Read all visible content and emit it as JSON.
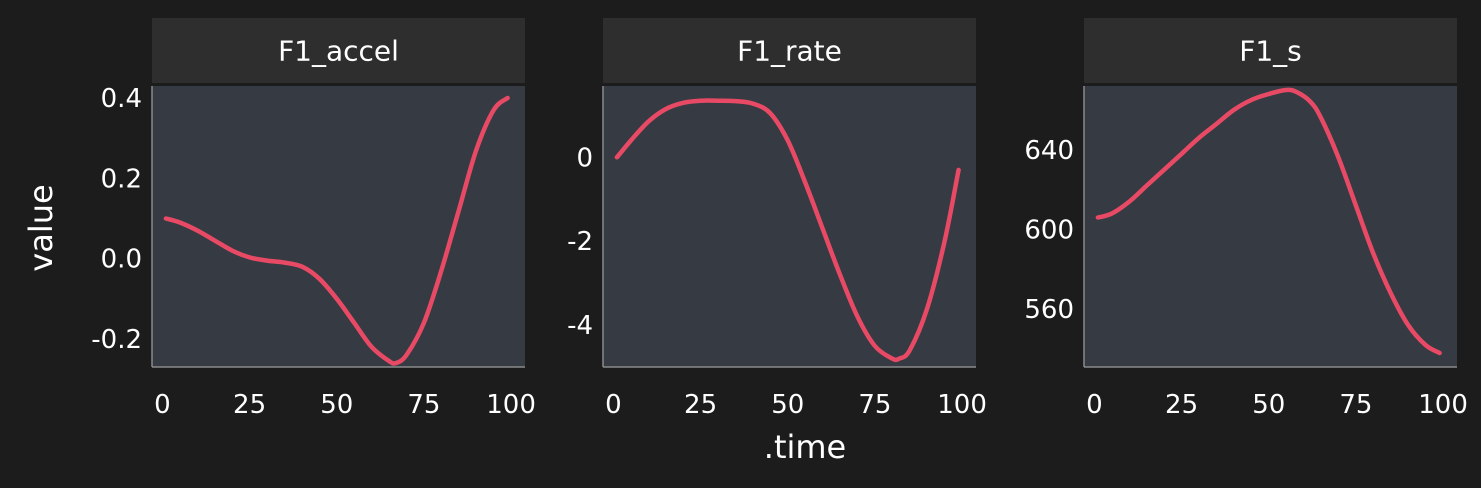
{
  "colors": {
    "background": "#1c1c1c",
    "panel": "#363a42",
    "strip": "#2e2e2e",
    "line": "#e84a66",
    "text": "#ffffff",
    "axis": "#8a8a8a"
  },
  "chart_data": {
    "type": "line",
    "facet_by": "variable",
    "xlabel": ".time",
    "ylabel": "value",
    "grid": false,
    "legend": "none",
    "panels": [
      {
        "strip": "F1_accel",
        "xlim": [
          -3,
          104
        ],
        "ylim": [
          -0.27,
          0.43
        ],
        "xticks": [
          0,
          25,
          50,
          75,
          100
        ],
        "yticks": [
          0.4,
          0.2,
          0.0,
          -0.2
        ],
        "ytick_labels": [
          "0.4",
          "0.2",
          "0.0",
          "-0.2"
        ],
        "x": [
          1,
          5,
          10,
          15,
          20,
          25,
          30,
          35,
          40,
          45,
          50,
          55,
          60,
          65,
          67,
          70,
          75,
          80,
          85,
          90,
          95,
          99
        ],
        "y": [
          0.1,
          0.09,
          0.07,
          0.045,
          0.02,
          0.003,
          -0.005,
          -0.01,
          -0.02,
          -0.05,
          -0.1,
          -0.16,
          -0.22,
          -0.255,
          -0.26,
          -0.24,
          -0.16,
          -0.03,
          0.12,
          0.27,
          0.37,
          0.4
        ]
      },
      {
        "strip": "F1_rate",
        "xlim": [
          -3,
          104
        ],
        "ylim": [
          -5.0,
          1.7
        ],
        "xticks": [
          0,
          25,
          50,
          75,
          100
        ],
        "yticks": [
          0,
          -2,
          -4
        ],
        "ytick_labels": [
          "0",
          "-2",
          "-4"
        ],
        "x": [
          1,
          5,
          10,
          15,
          20,
          25,
          30,
          35,
          40,
          45,
          50,
          55,
          60,
          65,
          70,
          75,
          80,
          82,
          85,
          90,
          95,
          99
        ],
        "y": [
          0.0,
          0.4,
          0.85,
          1.15,
          1.3,
          1.35,
          1.35,
          1.34,
          1.28,
          1.05,
          0.4,
          -0.6,
          -1.7,
          -2.8,
          -3.8,
          -4.5,
          -4.8,
          -4.8,
          -4.6,
          -3.6,
          -2.0,
          -0.3
        ]
      },
      {
        "strip": "F1_s",
        "xlim": [
          -3,
          104
        ],
        "ylim": [
          531,
          672
        ],
        "xticks": [
          0,
          25,
          50,
          75,
          100
        ],
        "yticks": [
          640,
          600,
          560
        ],
        "ytick_labels": [
          "640",
          "600",
          "560"
        ],
        "x": [
          1,
          5,
          10,
          15,
          20,
          25,
          30,
          35,
          40,
          45,
          50,
          55,
          58,
          62,
          65,
          70,
          75,
          80,
          85,
          90,
          95,
          99
        ],
        "y": [
          606,
          608,
          614,
          622,
          630,
          638,
          646,
          653,
          660,
          665,
          668,
          670,
          669,
          664,
          656,
          636,
          612,
          588,
          568,
          552,
          542,
          538
        ]
      }
    ]
  }
}
